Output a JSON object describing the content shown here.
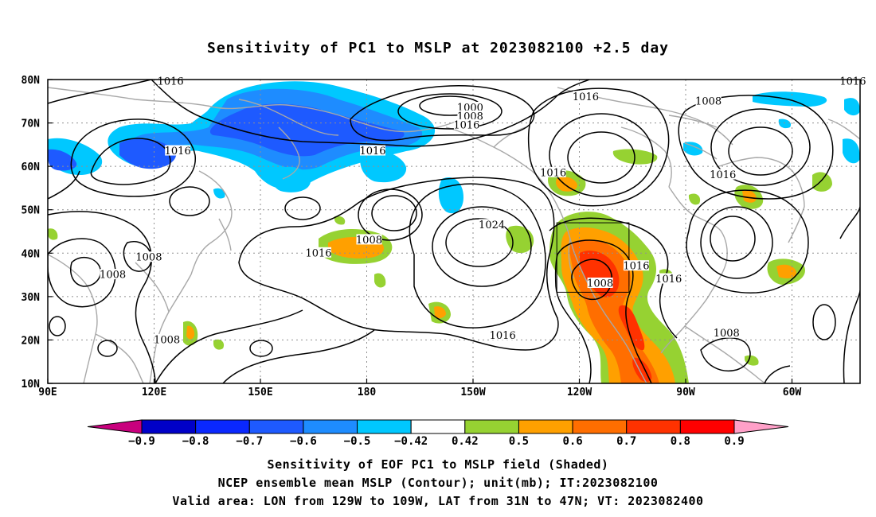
{
  "title": "Sensitivity of PC1 to MSLP at 2023082100 +2.5 day",
  "lat_labels": [
    "80N",
    "70N",
    "60N",
    "50N",
    "40N",
    "30N",
    "20N",
    "10N"
  ],
  "lon_labels": [
    "90E",
    "120E",
    "150E",
    "180",
    "150W",
    "120W",
    "90W",
    "60W"
  ],
  "contour_labels": [
    {
      "text": "1016",
      "lon": 124,
      "lat": 79.5
    },
    {
      "text": "1000",
      "lon": -153,
      "lat": 73.5
    },
    {
      "text": "1008",
      "lon": -153,
      "lat": 71.5
    },
    {
      "text": "1016",
      "lon": -154,
      "lat": 69.5
    },
    {
      "text": "1016",
      "lon": -121,
      "lat": 76
    },
    {
      "text": "1008",
      "lon": -87,
      "lat": 75
    },
    {
      "text": "1016",
      "lon": -47,
      "lat": 79.5
    },
    {
      "text": "1016",
      "lon": 126,
      "lat": 63.5
    },
    {
      "text": "1016",
      "lon": 180,
      "lat": 63.5
    },
    {
      "text": "1016",
      "lon": -130,
      "lat": 58.5
    },
    {
      "text": "1016",
      "lon": -83,
      "lat": 58
    },
    {
      "text": "1024",
      "lon": -147,
      "lat": 46.5
    },
    {
      "text": "1008",
      "lon": -181,
      "lat": 43
    },
    {
      "text": "1016",
      "lon": 165,
      "lat": 40
    },
    {
      "text": "1008",
      "lon": 118,
      "lat": 39
    },
    {
      "text": "1008",
      "lon": 108,
      "lat": 35
    },
    {
      "text": "1016",
      "lon": -107,
      "lat": 37
    },
    {
      "text": "1016",
      "lon": -98,
      "lat": 34
    },
    {
      "text": "1008",
      "lon": -117,
      "lat": 33
    },
    {
      "text": "1016",
      "lon": -144,
      "lat": 21
    },
    {
      "text": "1008",
      "lon": -82,
      "lat": 21.5
    },
    {
      "text": "1008",
      "lon": 123,
      "lat": 20
    }
  ],
  "valid_area": {
    "lon_min": -129,
    "lon_max": -109,
    "lat_min": 31,
    "lat_max": 47
  },
  "colorbar": {
    "labels": [
      "-0.9",
      "-0.8",
      "-0.7",
      "-0.6",
      "-0.5",
      "-0.42",
      "0.42",
      "0.5",
      "0.6",
      "0.7",
      "0.8",
      "0.9"
    ],
    "colors": [
      "#0000c8",
      "#0a28ff",
      "#1e5aff",
      "#1e8cff",
      "#00c8ff",
      "#ffffff",
      "#96d232",
      "#ffa000",
      "#ff6e00",
      "#ff3200",
      "#ff0000"
    ],
    "low_arrow_color": "#c8007d",
    "high_arrow_color": "#ffa0c8"
  },
  "captions": {
    "line1": "Sensitivity of EOF PC1 to MSLP field (Shaded)",
    "line2": "NCEP ensemble mean MSLP (Contour); unit(mb); IT:2023082100",
    "line3": "Valid area: LON from 129W to 109W, LAT from 31N to 47N; VT: 2023082400"
  }
}
